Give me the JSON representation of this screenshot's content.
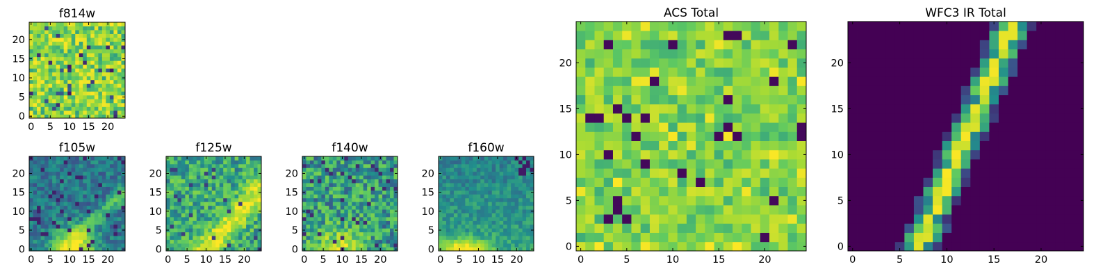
{
  "palette": [
    "#440154",
    "#3b528b",
    "#21908c",
    "#5ec962",
    "#a8db34",
    "#fde725"
  ],
  "chart_data": [
    {
      "type": "heatmap",
      "title": "f814w",
      "xlim": [
        -0.5,
        24.5
      ],
      "ylim": [
        -0.5,
        24.5
      ],
      "xticks": [
        0,
        5,
        10,
        15,
        20
      ],
      "yticks": [
        0,
        5,
        10,
        15,
        20
      ],
      "grid": false,
      "pattern": "noise",
      "value_range": [
        0,
        1
      ]
    },
    {
      "type": "heatmap",
      "title": "f105w",
      "xlim": [
        -0.5,
        24.5
      ],
      "ylim": [
        -0.5,
        24.5
      ],
      "xticks": [
        0,
        5,
        10,
        15,
        20
      ],
      "yticks": [
        0,
        5,
        10,
        15,
        20
      ],
      "grid": false,
      "pattern": "bright-lower-center-with-diagonal-band",
      "value_range": [
        0,
        1
      ]
    },
    {
      "type": "heatmap",
      "title": "f125w",
      "xlim": [
        -0.5,
        24.5
      ],
      "ylim": [
        -0.5,
        24.5
      ],
      "xticks": [
        0,
        5,
        10,
        15,
        20
      ],
      "yticks": [
        0,
        5,
        10,
        15,
        20
      ],
      "grid": false,
      "pattern": "diagonal-band-bright",
      "value_range": [
        0,
        1
      ]
    },
    {
      "type": "heatmap",
      "title": "f140w",
      "xlim": [
        -0.5,
        24.5
      ],
      "ylim": [
        -0.5,
        24.5
      ],
      "xticks": [
        0,
        5,
        10,
        15,
        20
      ],
      "yticks": [
        0,
        5,
        10,
        15,
        20
      ],
      "grid": false,
      "pattern": "mixed-with-bright-lower",
      "value_range": [
        0,
        1
      ]
    },
    {
      "type": "heatmap",
      "title": "f160w",
      "xlim": [
        -0.5,
        24.5
      ],
      "ylim": [
        -0.5,
        24.5
      ],
      "xticks": [
        0,
        5,
        10,
        15,
        20
      ],
      "yticks": [
        0,
        5,
        10,
        15,
        20
      ],
      "grid": false,
      "pattern": "dark-upper-bright-lower-left",
      "value_range": [
        0,
        1
      ]
    },
    {
      "type": "heatmap",
      "title": "ACS Total",
      "xlim": [
        -0.5,
        24.5
      ],
      "ylim": [
        -0.5,
        24.5
      ],
      "xticks": [
        0,
        5,
        10,
        15,
        20
      ],
      "yticks": [
        0,
        5,
        10,
        15,
        20
      ],
      "grid": false,
      "pattern": "noise-greenish",
      "value_range": [
        0,
        1
      ]
    },
    {
      "type": "heatmap",
      "title": "WFC3 IR Total",
      "xlim": [
        -0.5,
        24.5
      ],
      "ylim": [
        -0.5,
        24.5
      ],
      "xticks": [
        0,
        5,
        10,
        15,
        20
      ],
      "yticks": [
        0,
        5,
        10,
        15,
        20
      ],
      "grid": false,
      "pattern": "diagonal-line",
      "trace": {
        "x0": 7,
        "y0": 0,
        "x1": 17,
        "y1": 24
      },
      "value_range": [
        0,
        1
      ]
    }
  ]
}
